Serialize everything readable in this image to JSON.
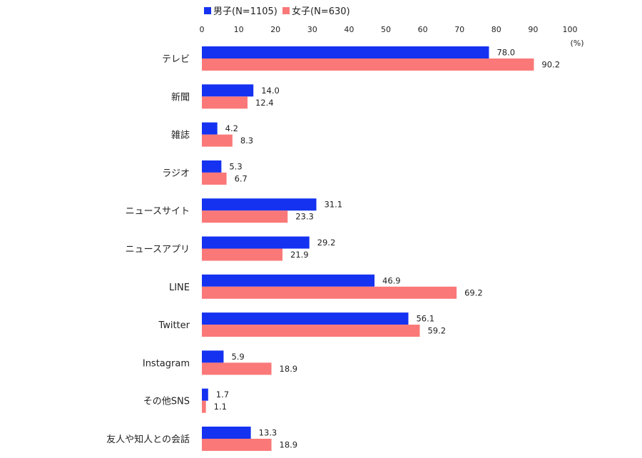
{
  "chart_data": {
    "type": "bar",
    "orientation": "horizontal",
    "categories": [
      "テレビ",
      "新聞",
      "雑誌",
      "ラジオ",
      "ニュースサイト",
      "ニュースアプリ",
      "LINE",
      "Twitter",
      "Instagram",
      "その他SNS",
      "友人や知人との会話"
    ],
    "series": [
      {
        "name": "男子(N=1105)",
        "color": "#1432f0",
        "values": [
          78.0,
          14.0,
          4.2,
          5.3,
          31.1,
          29.2,
          46.9,
          56.1,
          5.9,
          1.7,
          13.3
        ]
      },
      {
        "name": "女子(N=630)",
        "color": "#fa7878",
        "values": [
          90.2,
          12.4,
          8.3,
          6.7,
          23.3,
          21.9,
          69.2,
          59.2,
          18.9,
          1.1,
          18.9
        ]
      }
    ],
    "xlim": [
      0,
      100
    ],
    "xticks": [
      0,
      10,
      20,
      30,
      40,
      50,
      60,
      70,
      80,
      90,
      100
    ],
    "unit_label": "(%)",
    "axis_position": "top",
    "legend_position": "top",
    "grid": false
  }
}
